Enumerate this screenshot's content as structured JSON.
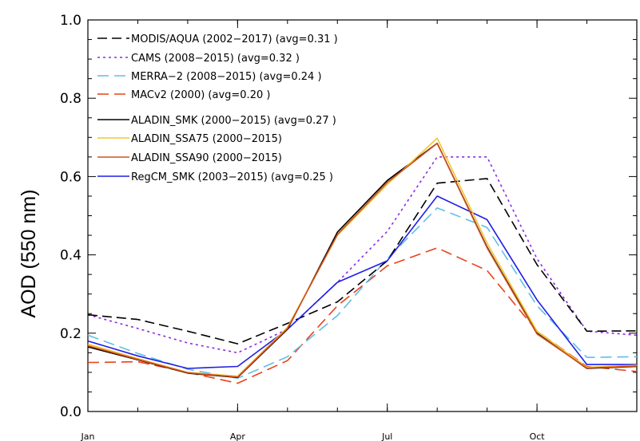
{
  "chart_data": {
    "type": "line",
    "title": "",
    "xlabel": "",
    "ylabel": "AOD (550 nm)",
    "x": [
      1,
      2,
      3,
      4,
      5,
      6,
      7,
      8,
      9,
      10,
      11,
      12
    ],
    "xlim": [
      1,
      12
    ],
    "ylim": [
      0.0,
      1.0
    ],
    "xticks": [
      {
        "value": 1,
        "label": "Jan"
      },
      {
        "value": 4,
        "label": "Apr"
      },
      {
        "value": 7,
        "label": "Jul"
      },
      {
        "value": 10,
        "label": "Oct"
      }
    ],
    "yticks": [
      {
        "value": 0.0,
        "label": "0.0"
      },
      {
        "value": 0.2,
        "label": "0.2"
      },
      {
        "value": 0.4,
        "label": "0.4"
      },
      {
        "value": 0.6,
        "label": "0.6"
      },
      {
        "value": 0.8,
        "label": "0.8"
      },
      {
        "value": 1.0,
        "label": "1.0"
      }
    ],
    "grid": false,
    "legend_position": "top-left",
    "series": [
      {
        "name": "MODIS/AQUA (2002−2017) (avg=0.31 )",
        "color": "#000000",
        "style": "dashed",
        "values": [
          0.247,
          0.235,
          0.205,
          0.173,
          0.225,
          0.28,
          0.385,
          0.583,
          0.595,
          0.375,
          0.205,
          0.206
        ]
      },
      {
        "name": "CAMS (2008−2015) (avg=0.32 )",
        "color": "#8a2be2",
        "style": "dotted",
        "values": [
          0.247,
          0.212,
          0.175,
          0.15,
          0.21,
          0.33,
          0.46,
          0.65,
          0.65,
          0.39,
          0.205,
          0.195
        ]
      },
      {
        "name": "MERRA−2 (2008−2015) (avg=0.24 )",
        "color": "#5fbfe6",
        "style": "longdash",
        "values": [
          0.195,
          0.148,
          0.108,
          0.085,
          0.14,
          0.245,
          0.39,
          0.52,
          0.47,
          0.27,
          0.138,
          0.14
        ]
      },
      {
        "name": "MACv2 (2000) (avg=0.20 )",
        "color": "#e8431a",
        "style": "longdash",
        "values": [
          0.125,
          0.127,
          0.1,
          0.072,
          0.13,
          0.27,
          0.372,
          0.418,
          0.36,
          0.205,
          0.115,
          0.102
        ]
      },
      {
        "name": "ALADIN_SMK (2000−2015) (avg=0.27 )",
        "color": "#000000",
        "style": "solid",
        "values": [
          0.165,
          0.132,
          0.098,
          0.087,
          0.21,
          0.458,
          0.59,
          0.685,
          0.42,
          0.2,
          0.11,
          0.115
        ]
      },
      {
        "name": "ALADIN_SSA75 (2000−2015)",
        "color": "#f2c530",
        "style": "solid",
        "values": [
          0.172,
          0.135,
          0.1,
          0.09,
          0.215,
          0.45,
          0.58,
          0.698,
          0.43,
          0.205,
          0.113,
          0.118
        ]
      },
      {
        "name": "ALADIN_SSA90 (2000−2015)",
        "color": "#d2501e",
        "style": "solid",
        "values": [
          0.168,
          0.133,
          0.099,
          0.088,
          0.212,
          0.452,
          0.585,
          0.685,
          0.418,
          0.198,
          0.111,
          0.116
        ]
      },
      {
        "name": "RegCM_SMK (2003−2015) (avg=0.25 )",
        "color": "#1f1fe6",
        "style": "solid",
        "values": [
          0.18,
          0.142,
          0.11,
          0.115,
          0.21,
          0.33,
          0.385,
          0.55,
          0.49,
          0.285,
          0.12,
          0.12
        ]
      }
    ]
  }
}
